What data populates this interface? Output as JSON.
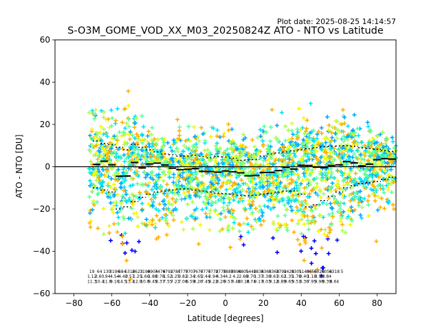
{
  "chart_data": {
    "type": "scatter",
    "title": "S-O3M_GOME_VOD_XX_M03_20250824Z ATO - NTO vs Latitude",
    "plot_date": "Plot date: 2025-08-25 14:14:57",
    "xlabel": "Latitude [degrees]",
    "ylabel": "ATO - NTO [DU]",
    "xlim": [
      -90,
      90
    ],
    "ylim": [
      -60,
      60
    ],
    "xticks": [
      -80,
      -60,
      -40,
      -20,
      0,
      20,
      40,
      60,
      80
    ],
    "yticks": [
      -60,
      -40,
      -20,
      0,
      20,
      40,
      60
    ],
    "zero_line": 0,
    "grid": false,
    "marker": "+",
    "colormap": [
      "#0000ff",
      "#00a8ff",
      "#00e4f8",
      "#5cff9a",
      "#a8ff4f",
      "#f4f802",
      "#ffb000"
    ],
    "mean_bins": {
      "lat": [
        -68,
        -64,
        -60,
        -56,
        -52,
        -48,
        -44,
        -40,
        -36,
        -32,
        -28,
        -24,
        -20,
        -16,
        -12,
        -8,
        -4,
        0,
        4,
        8,
        12,
        16,
        20,
        24,
        28,
        32,
        36,
        40,
        44,
        48,
        52,
        56,
        60,
        64,
        68,
        72,
        76,
        80,
        84,
        88
      ],
      "mean": [
        1.1,
        2.6,
        0.9,
        -4.5,
        -4.4,
        2.0,
        -0.6,
        1.3,
        1.7,
        0.8,
        -0.7,
        -1.4,
        -1.2,
        -0.9,
        -2.2,
        -2.3,
        -2.6,
        -2.0,
        -2.4,
        -2.9,
        -4.3,
        -4.2,
        -2.7,
        -2.7,
        -1.8,
        -0.3,
        -1.1,
        0.7,
        0.6,
        -0.2,
        -0.4,
        0.6,
        0.9,
        2.4,
        1.8,
        0.4,
        1.2,
        3.3,
        3.8,
        3.6
      ],
      "mean_plus_std": [
        12.2,
        11.0,
        10.4,
        9.2,
        8.0,
        10.5,
        9.2,
        8.0,
        7.0,
        6.0,
        5.7,
        5.0,
        5.0,
        5.5,
        4.9,
        4.2,
        4.8,
        4.6,
        4.0,
        3.0,
        3.2,
        3.5,
        5.0,
        6.0,
        6.5,
        7.0,
        7.5,
        8.0,
        8.5,
        9.0,
        9.4,
        9.6,
        9.8,
        10.0,
        9.6,
        9.0,
        8.6,
        8.2,
        7.6,
        7.2
      ],
      "mean_minus_std": [
        -10.0,
        -11.0,
        -12.0,
        -20.0,
        -19.0,
        -16.5,
        -14.5,
        -13.0,
        -12.0,
        -11.5,
        -11.0,
        -10.5,
        -10.5,
        -11.0,
        -11.5,
        -12.0,
        -12.5,
        -12.8,
        -13.0,
        -13.5,
        -13.8,
        -13.5,
        -13.0,
        -12.5,
        -12.0,
        -11.5,
        -11.5,
        -13.0,
        -19.0,
        -18.0,
        -16.0,
        -14.0,
        -12.0,
        -10.0,
        -9.0,
        -8.0,
        -7.5,
        -7.0,
        -6.0,
        -5.0
      ]
    },
    "bin_stats": {
      "lat": [
        -70.5,
        -66.5,
        -62.5,
        -58.5,
        -54.5,
        -50.5,
        -46.5,
        -42.5,
        -38.5,
        -34.5,
        -30.5,
        -26.5,
        -22.5,
        -18.5,
        -14.5,
        -10.5,
        -6.5,
        -2.5,
        1.5,
        5.5,
        9.5,
        13.5,
        17.5,
        21.5,
        25.5,
        29.5,
        33.5,
        37.5,
        41.5,
        45.5,
        49.5,
        53.5,
        57.5,
        61.5,
        65.5,
        69.5,
        73.5,
        77.5,
        81.5,
        85.5,
        89.5
      ],
      "row1": [
        "19",
        "64",
        "130",
        "3196",
        "684",
        "5316",
        "2623",
        "3199",
        "4904",
        "7479",
        "4792",
        "3787",
        "4779",
        "7707",
        "7677",
        "6776",
        "7778",
        "2778",
        "7888",
        "7898",
        "6805",
        "5448",
        "1834",
        "8363",
        "8368",
        "3792",
        "9428",
        "9301",
        "5143",
        "8656",
        "6028",
        "6058",
        "6318",
        "5",
        "",
        "",
        "",
        "",
        "",
        "",
        ""
      ],
      "row2": [
        "1.12",
        "2.60",
        ".94",
        "4.54",
        "-4.42",
        "0.57",
        "1.25",
        "1.66",
        "1.88",
        "0.78",
        "1.52",
        "1.25",
        "0.82",
        "2.34",
        "2.65",
        "2.44",
        "2.94",
        "4.34",
        "4.2",
        "4.2",
        "2.68",
        "0.70",
        "1.37",
        "0.30",
        "0.61",
        "0.62",
        "1.35",
        "1.78",
        "0.40",
        "1.18",
        "3.39",
        "3.84",
        "",
        "",
        "",
        "",
        "",
        "",
        "",
        "",
        ""
      ],
      "row3": [
        "11.3",
        "10.4",
        "11.8",
        "9.16",
        "14.5",
        "13.4",
        "12.8",
        "10.8",
        "9.45",
        "8.37",
        "7.55",
        "7.21",
        "7.06",
        "6.59",
        "8.26",
        "7.45",
        "8.22",
        "8.26",
        "9.57",
        "9.48",
        "10.18",
        "8.74",
        "9.17",
        "8.03",
        "9.12",
        "8.89",
        "9.65",
        "9.51",
        "8.36",
        "7.95",
        "9.98",
        "9.39",
        "8.64",
        "",
        "",
        "",
        "",
        "",
        "",
        "",
        ""
      ]
    }
  }
}
